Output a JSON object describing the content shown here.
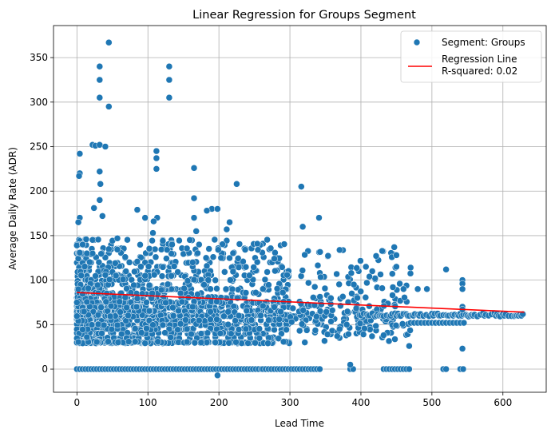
{
  "chart_data": {
    "type": "scatter",
    "title": "Linear Regression for Groups Segment",
    "xlabel": "Lead Time",
    "ylabel": "Average Daily Rate (ADR)",
    "xlim": [
      -33,
      661
    ],
    "ylim": [
      -26,
      386
    ],
    "xticks": [
      0,
      100,
      200,
      300,
      400,
      500,
      600
    ],
    "yticks": [
      0,
      50,
      100,
      150,
      200,
      250,
      300,
      350
    ],
    "grid": true,
    "legend_position": "top-right",
    "colors": {
      "points": "#1f77b4",
      "regression": "#ff0000",
      "grid": "#b0b0b0"
    },
    "series": [
      {
        "name": "Segment: Groups",
        "kind": "scatter",
        "outliers": [
          [
            45,
            367
          ],
          [
            32,
            340
          ],
          [
            130,
            340
          ],
          [
            32,
            325
          ],
          [
            130,
            325
          ],
          [
            32,
            305
          ],
          [
            130,
            305
          ],
          [
            45,
            295
          ],
          [
            22,
            252
          ],
          [
            26,
            251
          ],
          [
            32,
            252
          ],
          [
            40,
            250
          ],
          [
            112,
            245
          ],
          [
            112,
            237
          ],
          [
            112,
            225
          ],
          [
            165,
            226
          ],
          [
            4,
            242
          ],
          [
            32,
            222
          ],
          [
            4,
            220
          ],
          [
            3,
            217
          ],
          [
            33,
            208
          ],
          [
            225,
            208
          ],
          [
            316,
            205
          ],
          [
            32,
            190
          ],
          [
            165,
            192
          ],
          [
            190,
            180
          ],
          [
            198,
            180
          ],
          [
            85,
            179
          ],
          [
            96,
            170
          ],
          [
            113,
            170
          ],
          [
            108,
            166
          ],
          [
            165,
            170
          ],
          [
            183,
            178
          ],
          [
            215,
            165
          ],
          [
            211,
            157
          ],
          [
            318,
            160
          ],
          [
            341,
            170
          ],
          [
            4,
            170
          ],
          [
            2,
            165
          ],
          [
            36,
            172
          ],
          [
            24,
            181
          ],
          [
            57,
            147
          ],
          [
            107,
            153
          ],
          [
            168,
            155
          ],
          [
            14,
            130
          ],
          [
            8,
            140
          ]
        ],
        "zero_band": {
          "y": 0,
          "x_ranges": [
            [
              0,
              260
            ],
            [
              262,
              345
            ],
            [
              385,
              390
            ],
            [
              432,
              470
            ],
            [
              516,
              520
            ],
            [
              540,
              545
            ]
          ]
        },
        "scattered_zero_band": [
          [
            198,
            -7
          ],
          [
            385,
            5
          ],
          [
            468,
            26
          ],
          [
            543,
            23
          ]
        ],
        "dense_cluster": {
          "x_range": [
            0,
            300
          ],
          "y_range": [
            30,
            130
          ]
        },
        "mid_cluster": {
          "x_range": [
            300,
            470
          ],
          "y_range": [
            30,
            140
          ]
        },
        "tail_band": {
          "x_range": [
            400,
            630
          ],
          "y": 61
        },
        "tail_band_2": {
          "x_range": [
            470,
            545
          ],
          "y": 52
        },
        "tail_extras": [
          [
            447,
            137
          ],
          [
            450,
            128
          ],
          [
            470,
            114
          ],
          [
            520,
            112
          ],
          [
            543,
            100
          ],
          [
            543,
            96
          ],
          [
            543,
            90
          ],
          [
            543,
            70
          ],
          [
            543,
            67
          ],
          [
            480,
            90
          ],
          [
            493,
            90
          ],
          [
            420,
            102
          ],
          [
            430,
            91
          ],
          [
            450,
            115
          ],
          [
            412,
            104
          ],
          [
            407,
            115
          ],
          [
            390,
            95
          ],
          [
            395,
            80
          ],
          [
            370,
            45
          ],
          [
            380,
            50
          ],
          [
            445,
            92
          ],
          [
            460,
            90
          ]
        ]
      },
      {
        "name": "Regression Line",
        "kind": "line",
        "points": [
          [
            0,
            86
          ],
          [
            630,
            64
          ]
        ]
      }
    ],
    "legend": {
      "entries": [
        {
          "label": "Segment: Groups",
          "marker": "circle"
        },
        {
          "label": "Regression Line",
          "marker": "line",
          "sublabel": "R-squared: 0.02"
        }
      ]
    }
  }
}
